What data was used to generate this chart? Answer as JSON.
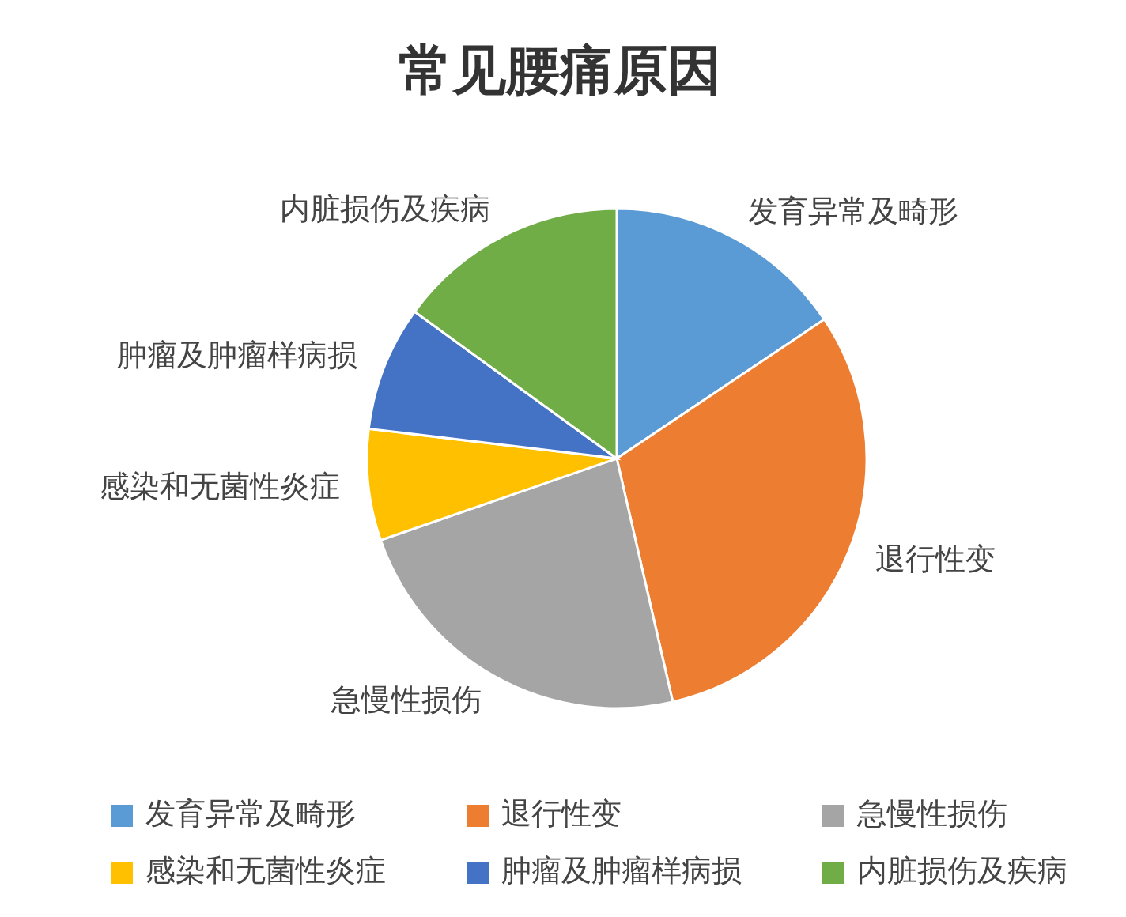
{
  "chart_data": {
    "type": "pie",
    "title": "常见腰痛原因",
    "categories": [
      "发育异常及畸形",
      "退行性变",
      "急慢性损伤",
      "感染和无菌性炎症",
      "肿瘤及肿瘤样病损",
      "内脏损伤及疾病"
    ],
    "values": [
      15.6,
      30.8,
      23.3,
      7.2,
      8.1,
      15.0
    ],
    "colors": [
      "#5b9bd5",
      "#ed7d31",
      "#a5a5a5",
      "#ffc000",
      "#4472c4",
      "#70ad47"
    ],
    "legend": "bottom"
  }
}
